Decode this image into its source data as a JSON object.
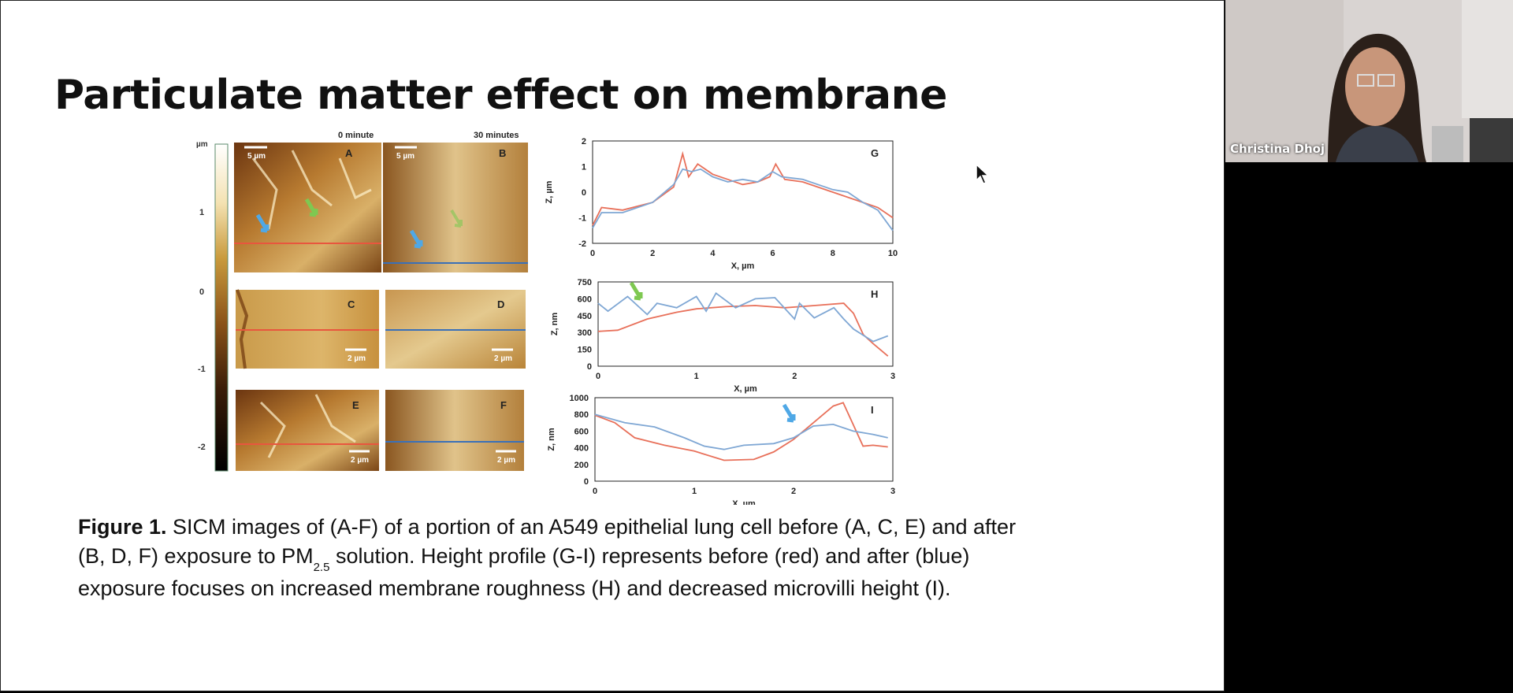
{
  "slide": {
    "title": "Particulate matter effect on membrane",
    "caption": {
      "label": "Figure 1.",
      "line1_text": " SICM images of (A-F) of a portion of an A549 epithelial lung cell before (A, C, E) and after",
      "line2_pre": "(B, D, F) exposure to PM",
      "line2_sub": "2.5",
      "line2_post": " solution. Height profile (G-I) represents before (red) and after (blue)",
      "line3": "exposure focuses on increased membrane roughness (H) and decreased microvilli height (I)."
    }
  },
  "images": {
    "unit": "µm",
    "col_titles": [
      "0 minute",
      "30 minutes"
    ],
    "panel_letters": [
      "A",
      "B",
      "C",
      "D",
      "E",
      "F"
    ],
    "scalebars": [
      "5 µm",
      "5 µm",
      "2 µm",
      "2 µm",
      "2 µm",
      "2 µm"
    ],
    "colorbar_ticks": [
      "1",
      "0",
      "-1",
      "-2"
    ]
  },
  "chart_data": [
    {
      "type": "line",
      "panel": "G",
      "xlabel": "X, µm",
      "ylabel": "Z, µm",
      "xlim": [
        0,
        10
      ],
      "ylim": [
        -2,
        2
      ],
      "xticks": [
        "0",
        "2",
        "4",
        "6",
        "8",
        "10"
      ],
      "yticks": [
        "2",
        "1",
        "0",
        "-1",
        "-2"
      ],
      "series": [
        {
          "color": "#e8705a",
          "x": [
            0,
            0.3,
            1,
            2,
            2.7,
            3.0,
            3.2,
            3.5,
            4,
            4.5,
            5,
            5.5,
            5.9,
            6.1,
            6.4,
            7,
            8,
            9,
            9.5,
            10
          ],
          "y": [
            -1.3,
            -0.6,
            -0.7,
            -0.4,
            0.2,
            1.5,
            0.6,
            1.1,
            0.7,
            0.5,
            0.3,
            0.4,
            0.6,
            1.1,
            0.5,
            0.4,
            0.0,
            -0.4,
            -0.6,
            -1.0
          ]
        },
        {
          "color": "#7fa7d4",
          "x": [
            0,
            0.3,
            1,
            2,
            2.7,
            3.0,
            3.3,
            3.6,
            4,
            4.5,
            5,
            5.5,
            6,
            6.3,
            7,
            8,
            8.5,
            9,
            9.5,
            10
          ],
          "y": [
            -1.4,
            -0.8,
            -0.8,
            -0.4,
            0.3,
            0.9,
            0.8,
            0.9,
            0.6,
            0.4,
            0.5,
            0.4,
            0.8,
            0.6,
            0.5,
            0.1,
            0.0,
            -0.4,
            -0.7,
            -1.5
          ]
        }
      ]
    },
    {
      "type": "line",
      "panel": "H",
      "xlabel": "X, µm",
      "ylabel": "Z, nm",
      "xlim": [
        0,
        3
      ],
      "ylim": [
        0,
        750
      ],
      "xticks": [
        "0",
        "1",
        "2",
        "3"
      ],
      "yticks": [
        "750",
        "600",
        "450",
        "300",
        "150",
        "0"
      ],
      "series": [
        {
          "color": "#e8705a",
          "x": [
            0,
            0.2,
            0.5,
            0.8,
            1,
            1.3,
            1.6,
            1.9,
            2.2,
            2.5,
            2.6,
            2.7,
            2.8,
            2.95
          ],
          "y": [
            310,
            320,
            420,
            480,
            510,
            530,
            540,
            520,
            540,
            560,
            470,
            280,
            200,
            90
          ]
        },
        {
          "color": "#7fa7d4",
          "x": [
            0,
            0.1,
            0.3,
            0.5,
            0.6,
            0.8,
            1,
            1.1,
            1.2,
            1.4,
            1.6,
            1.8,
            2,
            2.05,
            2.2,
            2.4,
            2.5,
            2.6,
            2.8,
            2.95
          ],
          "y": [
            560,
            490,
            620,
            460,
            560,
            520,
            620,
            490,
            650,
            520,
            600,
            610,
            420,
            560,
            430,
            520,
            420,
            330,
            220,
            270
          ]
        }
      ]
    },
    {
      "type": "line",
      "panel": "I",
      "xlabel": "X, µm",
      "ylabel": "Z, nm",
      "xlim": [
        0,
        3
      ],
      "ylim": [
        0,
        1000
      ],
      "xticks": [
        "0",
        "1",
        "2",
        "3"
      ],
      "yticks": [
        "1000",
        "800",
        "600",
        "400",
        "200",
        "0"
      ],
      "series": [
        {
          "color": "#e8705a",
          "x": [
            0,
            0.2,
            0.4,
            0.7,
            1,
            1.3,
            1.6,
            1.8,
            2,
            2.2,
            2.4,
            2.5,
            2.6,
            2.7,
            2.8,
            2.95
          ],
          "y": [
            790,
            700,
            520,
            430,
            360,
            250,
            260,
            350,
            500,
            700,
            900,
            940,
            680,
            420,
            430,
            410
          ]
        },
        {
          "color": "#7fa7d4",
          "x": [
            0,
            0.3,
            0.6,
            0.9,
            1.1,
            1.3,
            1.5,
            1.8,
            2,
            2.2,
            2.4,
            2.6,
            2.8,
            2.95
          ],
          "y": [
            800,
            700,
            650,
            520,
            420,
            380,
            430,
            450,
            520,
            660,
            680,
            600,
            560,
            520
          ]
        }
      ]
    }
  ],
  "video": {
    "participant_name": "Christina Dhoj"
  }
}
